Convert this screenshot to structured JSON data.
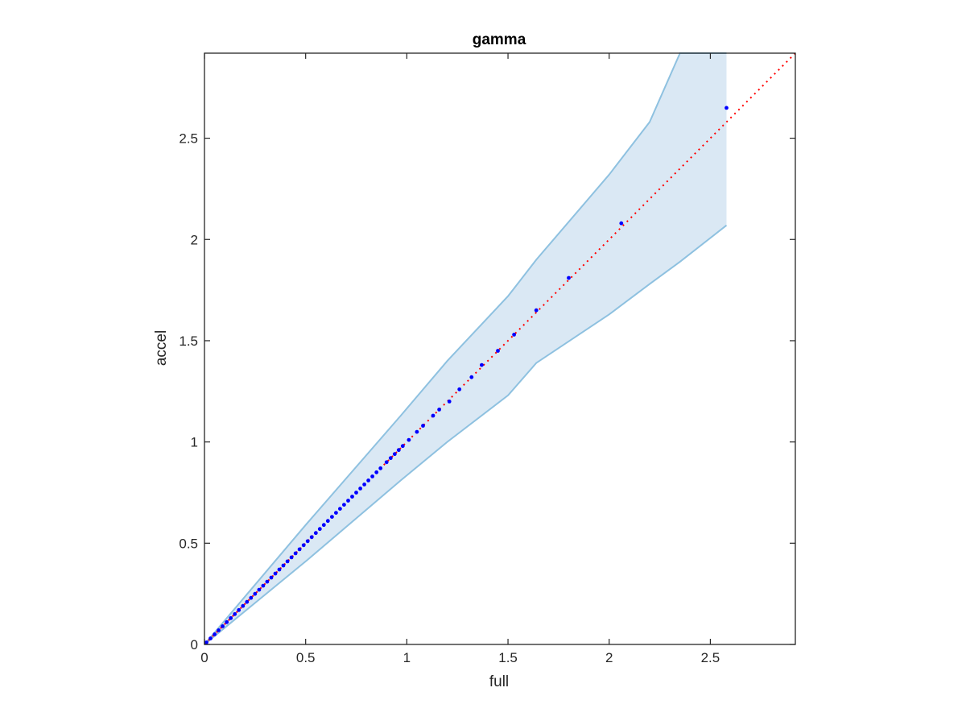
{
  "chart_data": {
    "type": "scatter",
    "title": "gamma",
    "xlabel": "full",
    "ylabel": "accel",
    "xlim": [
      0,
      2.92
    ],
    "ylim": [
      0,
      2.92
    ],
    "xticks": [
      0,
      0.5,
      1,
      1.5,
      2,
      2.5
    ],
    "yticks": [
      0,
      0.5,
      1,
      1.5,
      2,
      2.5
    ],
    "xtick_labels": [
      "0",
      "0.5",
      "1",
      "1.5",
      "2",
      "2.5"
    ],
    "ytick_labels": [
      "0",
      "0.5",
      "1",
      "1.5",
      "2",
      "2.5"
    ],
    "grid": false,
    "colors": {
      "points": "#0000ff",
      "reference_line": "#ff0000",
      "band_fill": "#dae8f4",
      "band_edge": "#8ec1e0",
      "axes": "#262626"
    },
    "reference_line": {
      "style": "dotted",
      "x": [
        0,
        2.92
      ],
      "y": [
        0,
        2.92
      ]
    },
    "band": {
      "x": [
        0,
        0.5,
        0.97,
        1.2,
        1.5,
        1.64,
        2.0,
        2.2,
        2.35,
        2.58
      ],
      "upper": [
        0,
        0.59,
        1.13,
        1.4,
        1.72,
        1.9,
        2.32,
        2.58,
        2.92,
        2.92
      ],
      "lower": [
        0,
        0.41,
        0.81,
        1.0,
        1.23,
        1.39,
        1.63,
        1.78,
        1.89,
        2.07
      ]
    },
    "series": [
      {
        "x": [
          0.01,
          0.03,
          0.05,
          0.07,
          0.09,
          0.11,
          0.13,
          0.15,
          0.17,
          0.19,
          0.21,
          0.23,
          0.25,
          0.27,
          0.29,
          0.31,
          0.33,
          0.35,
          0.37,
          0.39,
          0.41,
          0.43,
          0.45,
          0.47,
          0.49,
          0.51,
          0.53,
          0.55,
          0.57,
          0.59,
          0.61,
          0.63,
          0.65,
          0.67,
          0.69,
          0.71,
          0.73,
          0.75,
          0.77,
          0.79,
          0.81,
          0.83,
          0.85,
          0.87,
          0.9,
          0.92,
          0.94,
          0.96,
          0.98,
          1.01,
          1.05,
          1.08,
          1.13,
          1.16,
          1.21,
          1.26,
          1.32,
          1.37,
          1.45,
          1.53,
          1.64,
          1.8,
          2.06,
          2.58
        ],
        "y": [
          0.01,
          0.03,
          0.05,
          0.07,
          0.09,
          0.11,
          0.13,
          0.15,
          0.17,
          0.19,
          0.21,
          0.23,
          0.25,
          0.27,
          0.29,
          0.31,
          0.33,
          0.35,
          0.37,
          0.39,
          0.41,
          0.43,
          0.45,
          0.47,
          0.49,
          0.51,
          0.53,
          0.55,
          0.57,
          0.59,
          0.61,
          0.63,
          0.65,
          0.67,
          0.69,
          0.71,
          0.73,
          0.75,
          0.77,
          0.79,
          0.81,
          0.83,
          0.85,
          0.87,
          0.9,
          0.92,
          0.94,
          0.96,
          0.98,
          1.01,
          1.05,
          1.08,
          1.13,
          1.16,
          1.2,
          1.26,
          1.32,
          1.38,
          1.45,
          1.53,
          1.65,
          1.81,
          2.08,
          2.65
        ]
      }
    ]
  }
}
